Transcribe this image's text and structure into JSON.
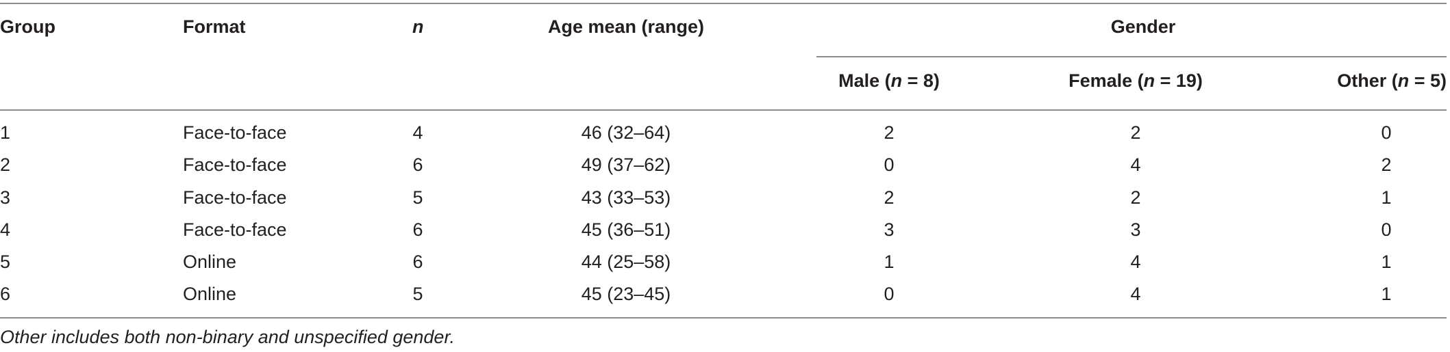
{
  "table": {
    "headers": {
      "group": "Group",
      "format": "Format",
      "n": "n",
      "age": "Age mean (range)",
      "gender": "Gender",
      "male_prefix": "Male (",
      "male_n": "n",
      "male_suffix": " = 8)",
      "female_prefix": "Female (",
      "female_n": "n",
      "female_suffix": " = 19)",
      "other_prefix": "Other (",
      "other_n": "n",
      "other_suffix": " = 5)"
    },
    "rows": [
      {
        "group": "1",
        "format": "Face-to-face",
        "n": "4",
        "age": "46 (32–64)",
        "male": "2",
        "female": "2",
        "other": "0"
      },
      {
        "group": "2",
        "format": "Face-to-face",
        "n": "6",
        "age": "49 (37–62)",
        "male": "0",
        "female": "4",
        "other": "2"
      },
      {
        "group": "3",
        "format": "Face-to-face",
        "n": "5",
        "age": "43 (33–53)",
        "male": "2",
        "female": "2",
        "other": "1"
      },
      {
        "group": "4",
        "format": "Face-to-face",
        "n": "6",
        "age": "45 (36–51)",
        "male": "3",
        "female": "3",
        "other": "0"
      },
      {
        "group": "5",
        "format": "Online",
        "n": "6",
        "age": "44 (25–58)",
        "male": "1",
        "female": "4",
        "other": "1"
      },
      {
        "group": "6",
        "format": "Online",
        "n": "5",
        "age": "45 (23–45)",
        "male": "0",
        "female": "4",
        "other": "1"
      }
    ],
    "note": "Other includes both non-binary and unspecified gender."
  }
}
